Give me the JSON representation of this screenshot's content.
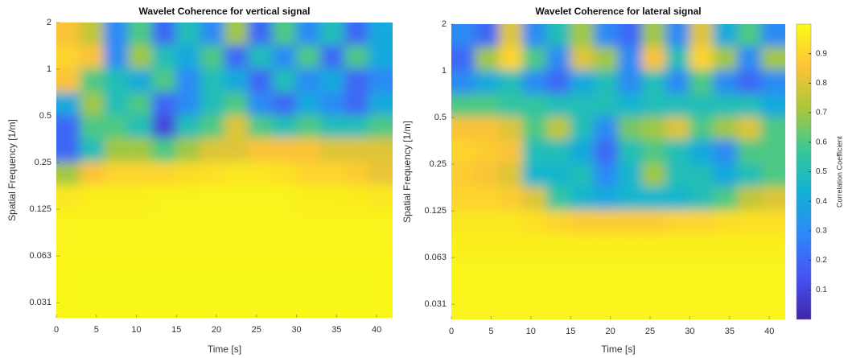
{
  "chart_data": [
    {
      "type": "heatmap",
      "title": "Wavelet Coherence for vertical signal",
      "xlabel": "Time [s]",
      "ylabel": "Spatial Frequency [1/m]",
      "x": [
        1.5,
        4.5,
        7.5,
        10.5,
        13.5,
        16.5,
        19.5,
        22.5,
        25.5,
        28.5,
        31.5,
        34.5,
        37.5,
        40.5
      ],
      "y": [
        1.68,
        1.19,
        0.84,
        0.59,
        0.42,
        0.3,
        0.21,
        0.149,
        0.105,
        0.074,
        0.053,
        0.037,
        0.026
      ],
      "z": [
        [
          0.85,
          0.75,
          0.3,
          0.6,
          0.2,
          0.5,
          0.3,
          0.7,
          0.2,
          0.6,
          0.3,
          0.5,
          0.2,
          0.4
        ],
        [
          0.9,
          0.85,
          0.3,
          0.7,
          0.5,
          0.4,
          0.6,
          0.2,
          0.5,
          0.3,
          0.6,
          0.2,
          0.6,
          0.4
        ],
        [
          0.85,
          0.6,
          0.5,
          0.4,
          0.6,
          0.3,
          0.5,
          0.4,
          0.2,
          0.5,
          0.3,
          0.4,
          0.2,
          0.3
        ],
        [
          0.4,
          0.7,
          0.5,
          0.6,
          0.2,
          0.3,
          0.5,
          0.6,
          0.3,
          0.2,
          0.4,
          0.3,
          0.2,
          0.4
        ],
        [
          0.2,
          0.6,
          0.6,
          0.5,
          0.1,
          0.5,
          0.6,
          0.8,
          0.6,
          0.5,
          0.6,
          0.5,
          0.5,
          0.6
        ],
        [
          0.2,
          0.5,
          0.7,
          0.7,
          0.6,
          0.7,
          0.8,
          0.8,
          0.85,
          0.85,
          0.85,
          0.8,
          0.8,
          0.8
        ],
        [
          0.7,
          0.85,
          0.9,
          0.9,
          0.9,
          0.92,
          0.93,
          0.95,
          0.95,
          0.93,
          0.9,
          0.9,
          0.88,
          0.82
        ],
        [
          0.95,
          0.97,
          0.97,
          0.97,
          0.98,
          0.98,
          0.98,
          0.98,
          0.98,
          0.98,
          0.97,
          0.97,
          0.96,
          0.95
        ],
        [
          0.98,
          0.98,
          0.98,
          0.98,
          0.98,
          0.98,
          0.98,
          0.98,
          0.98,
          0.98,
          0.98,
          0.98,
          0.98,
          0.98
        ],
        [
          0.98,
          0.98,
          0.98,
          0.98,
          0.98,
          0.98,
          0.98,
          0.98,
          0.98,
          0.98,
          0.98,
          0.98,
          0.98,
          0.98
        ],
        [
          0.99,
          0.99,
          0.99,
          0.99,
          0.99,
          0.99,
          0.99,
          0.99,
          0.99,
          0.99,
          0.99,
          0.99,
          0.99,
          0.99
        ],
        [
          0.99,
          0.99,
          0.99,
          0.99,
          0.99,
          0.99,
          0.99,
          0.99,
          0.99,
          0.99,
          0.99,
          0.99,
          0.99,
          0.99
        ],
        [
          0.99,
          0.99,
          0.99,
          0.99,
          0.99,
          0.99,
          0.99,
          0.99,
          0.99,
          0.99,
          0.99,
          0.99,
          0.99,
          0.99
        ]
      ],
      "xlim": [
        0,
        42
      ],
      "xticks": [
        0,
        5,
        10,
        15,
        20,
        25,
        30,
        35,
        40
      ],
      "ylim": [
        0.025,
        2
      ],
      "yscale": "log",
      "yticks": [
        2,
        1,
        0.5,
        0.25,
        0.125,
        {
          "value": 0.0625,
          "label": "0.063"
        },
        {
          "value": 0.03125,
          "label": "0.031"
        }
      ]
    },
    {
      "type": "heatmap",
      "title": "Wavelet Coherence for lateral signal",
      "xlabel": "Time [s]",
      "ylabel": "Spatial Frequency [1/m]",
      "x": [
        1.5,
        4.5,
        7.5,
        10.5,
        13.5,
        16.5,
        19.5,
        22.5,
        25.5,
        28.5,
        31.5,
        34.5,
        37.5,
        40.5
      ],
      "y": [
        1.68,
        1.19,
        0.84,
        0.59,
        0.42,
        0.3,
        0.21,
        0.149,
        0.105,
        0.074,
        0.053,
        0.037,
        0.026
      ],
      "z": [
        [
          0.3,
          0.2,
          0.8,
          0.3,
          0.5,
          0.7,
          0.3,
          0.2,
          0.7,
          0.3,
          0.8,
          0.4,
          0.6,
          0.3
        ],
        [
          0.2,
          0.7,
          0.9,
          0.6,
          0.3,
          0.8,
          0.7,
          0.3,
          0.85,
          0.5,
          0.9,
          0.7,
          0.3,
          0.7
        ],
        [
          0.3,
          0.4,
          0.5,
          0.3,
          0.2,
          0.4,
          0.5,
          0.3,
          0.5,
          0.3,
          0.6,
          0.3,
          0.2,
          0.3
        ],
        [
          0.6,
          0.6,
          0.55,
          0.55,
          0.5,
          0.5,
          0.5,
          0.45,
          0.5,
          0.5,
          0.5,
          0.5,
          0.5,
          0.4
        ],
        [
          0.85,
          0.85,
          0.8,
          0.6,
          0.75,
          0.5,
          0.3,
          0.65,
          0.7,
          0.8,
          0.6,
          0.7,
          0.8,
          0.6
        ],
        [
          0.9,
          0.88,
          0.85,
          0.5,
          0.5,
          0.4,
          0.2,
          0.5,
          0.6,
          0.5,
          0.4,
          0.3,
          0.6,
          0.6
        ],
        [
          0.88,
          0.85,
          0.8,
          0.45,
          0.45,
          0.5,
          0.3,
          0.45,
          0.7,
          0.5,
          0.5,
          0.4,
          0.5,
          0.6
        ],
        [
          0.9,
          0.9,
          0.88,
          0.8,
          0.55,
          0.45,
          0.4,
          0.45,
          0.45,
          0.45,
          0.5,
          0.6,
          0.75,
          0.8
        ],
        [
          0.95,
          0.95,
          0.95,
          0.93,
          0.9,
          0.88,
          0.88,
          0.88,
          0.88,
          0.9,
          0.9,
          0.92,
          0.93,
          0.93
        ],
        [
          0.97,
          0.97,
          0.97,
          0.97,
          0.97,
          0.97,
          0.97,
          0.97,
          0.97,
          0.97,
          0.97,
          0.97,
          0.97,
          0.97
        ],
        [
          0.98,
          0.98,
          0.98,
          0.98,
          0.98,
          0.98,
          0.98,
          0.98,
          0.98,
          0.98,
          0.98,
          0.98,
          0.98,
          0.98
        ],
        [
          0.98,
          0.98,
          0.98,
          0.98,
          0.98,
          0.98,
          0.98,
          0.98,
          0.98,
          0.98,
          0.98,
          0.98,
          0.98,
          0.98
        ],
        [
          0.98,
          0.98,
          0.98,
          0.98,
          0.98,
          0.98,
          0.98,
          0.98,
          0.98,
          0.98,
          0.98,
          0.98,
          0.98,
          0.98
        ]
      ],
      "xlim": [
        0,
        42
      ],
      "xticks": [
        0,
        5,
        10,
        15,
        20,
        25,
        30,
        35,
        40
      ],
      "ylim": [
        0.025,
        2
      ],
      "yscale": "log",
      "yticks": [
        2,
        1,
        0.5,
        0.25,
        0.125,
        {
          "value": 0.0625,
          "label": "0.063"
        },
        {
          "value": 0.03125,
          "label": "0.031"
        }
      ],
      "colorbar": {
        "label": "Correlation Coefficient",
        "lim": [
          0,
          1
        ],
        "ticks": [
          0.1,
          0.2,
          0.3,
          0.4,
          0.5,
          0.6,
          0.7,
          0.8,
          0.9
        ]
      }
    }
  ]
}
